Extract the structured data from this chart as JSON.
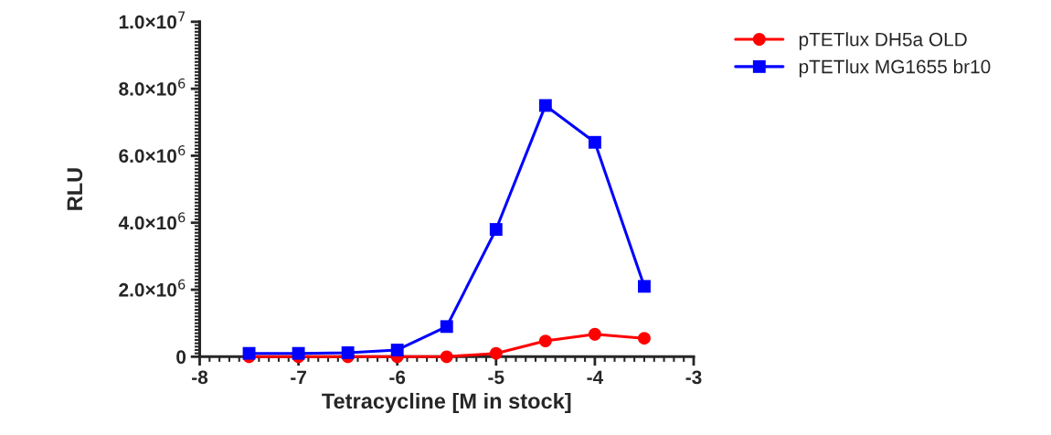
{
  "chart_data": {
    "type": "line",
    "xlabel": "Tetracycline [M in stock]",
    "ylabel": "RLU",
    "x": [
      -7.5,
      -7,
      -6.5,
      -6,
      -5.5,
      -5,
      -4.5,
      -4,
      -3.5
    ],
    "series": [
      {
        "name": "pTETlux DH5a OLD",
        "color": "#ff0000",
        "marker": "circle",
        "values": [
          0.0,
          0.0,
          0.0,
          0.0,
          0.0,
          100000,
          470000,
          670000,
          550000
        ]
      },
      {
        "name": "pTETlux MG1655 br10",
        "color": "#0000ff",
        "marker": "square",
        "values": [
          100000,
          100000,
          120000,
          200000,
          900000,
          3800000,
          7500000,
          6400000,
          2100000
        ]
      }
    ],
    "xlim": [
      -8,
      -3
    ],
    "xticks": [
      -8,
      -7,
      -6,
      -5,
      -4,
      -3
    ],
    "ylim": [
      0,
      10000000
    ],
    "yticks": [
      0,
      {
        "value": 2000000,
        "label": "2.0×10$^{6}$"
      },
      {
        "value": 4000000,
        "label": "4.0×10$^{6}$"
      },
      {
        "value": 6000000,
        "label": "6.0×10$^{6}$"
      },
      {
        "value": 8000000,
        "label": "8.0×10$^{6}$"
      },
      {
        "value": 10000000,
        "label": "1.0×10$^{7}$"
      }
    ],
    "grid": false,
    "legend": "top right",
    "line_style": "solid"
  }
}
